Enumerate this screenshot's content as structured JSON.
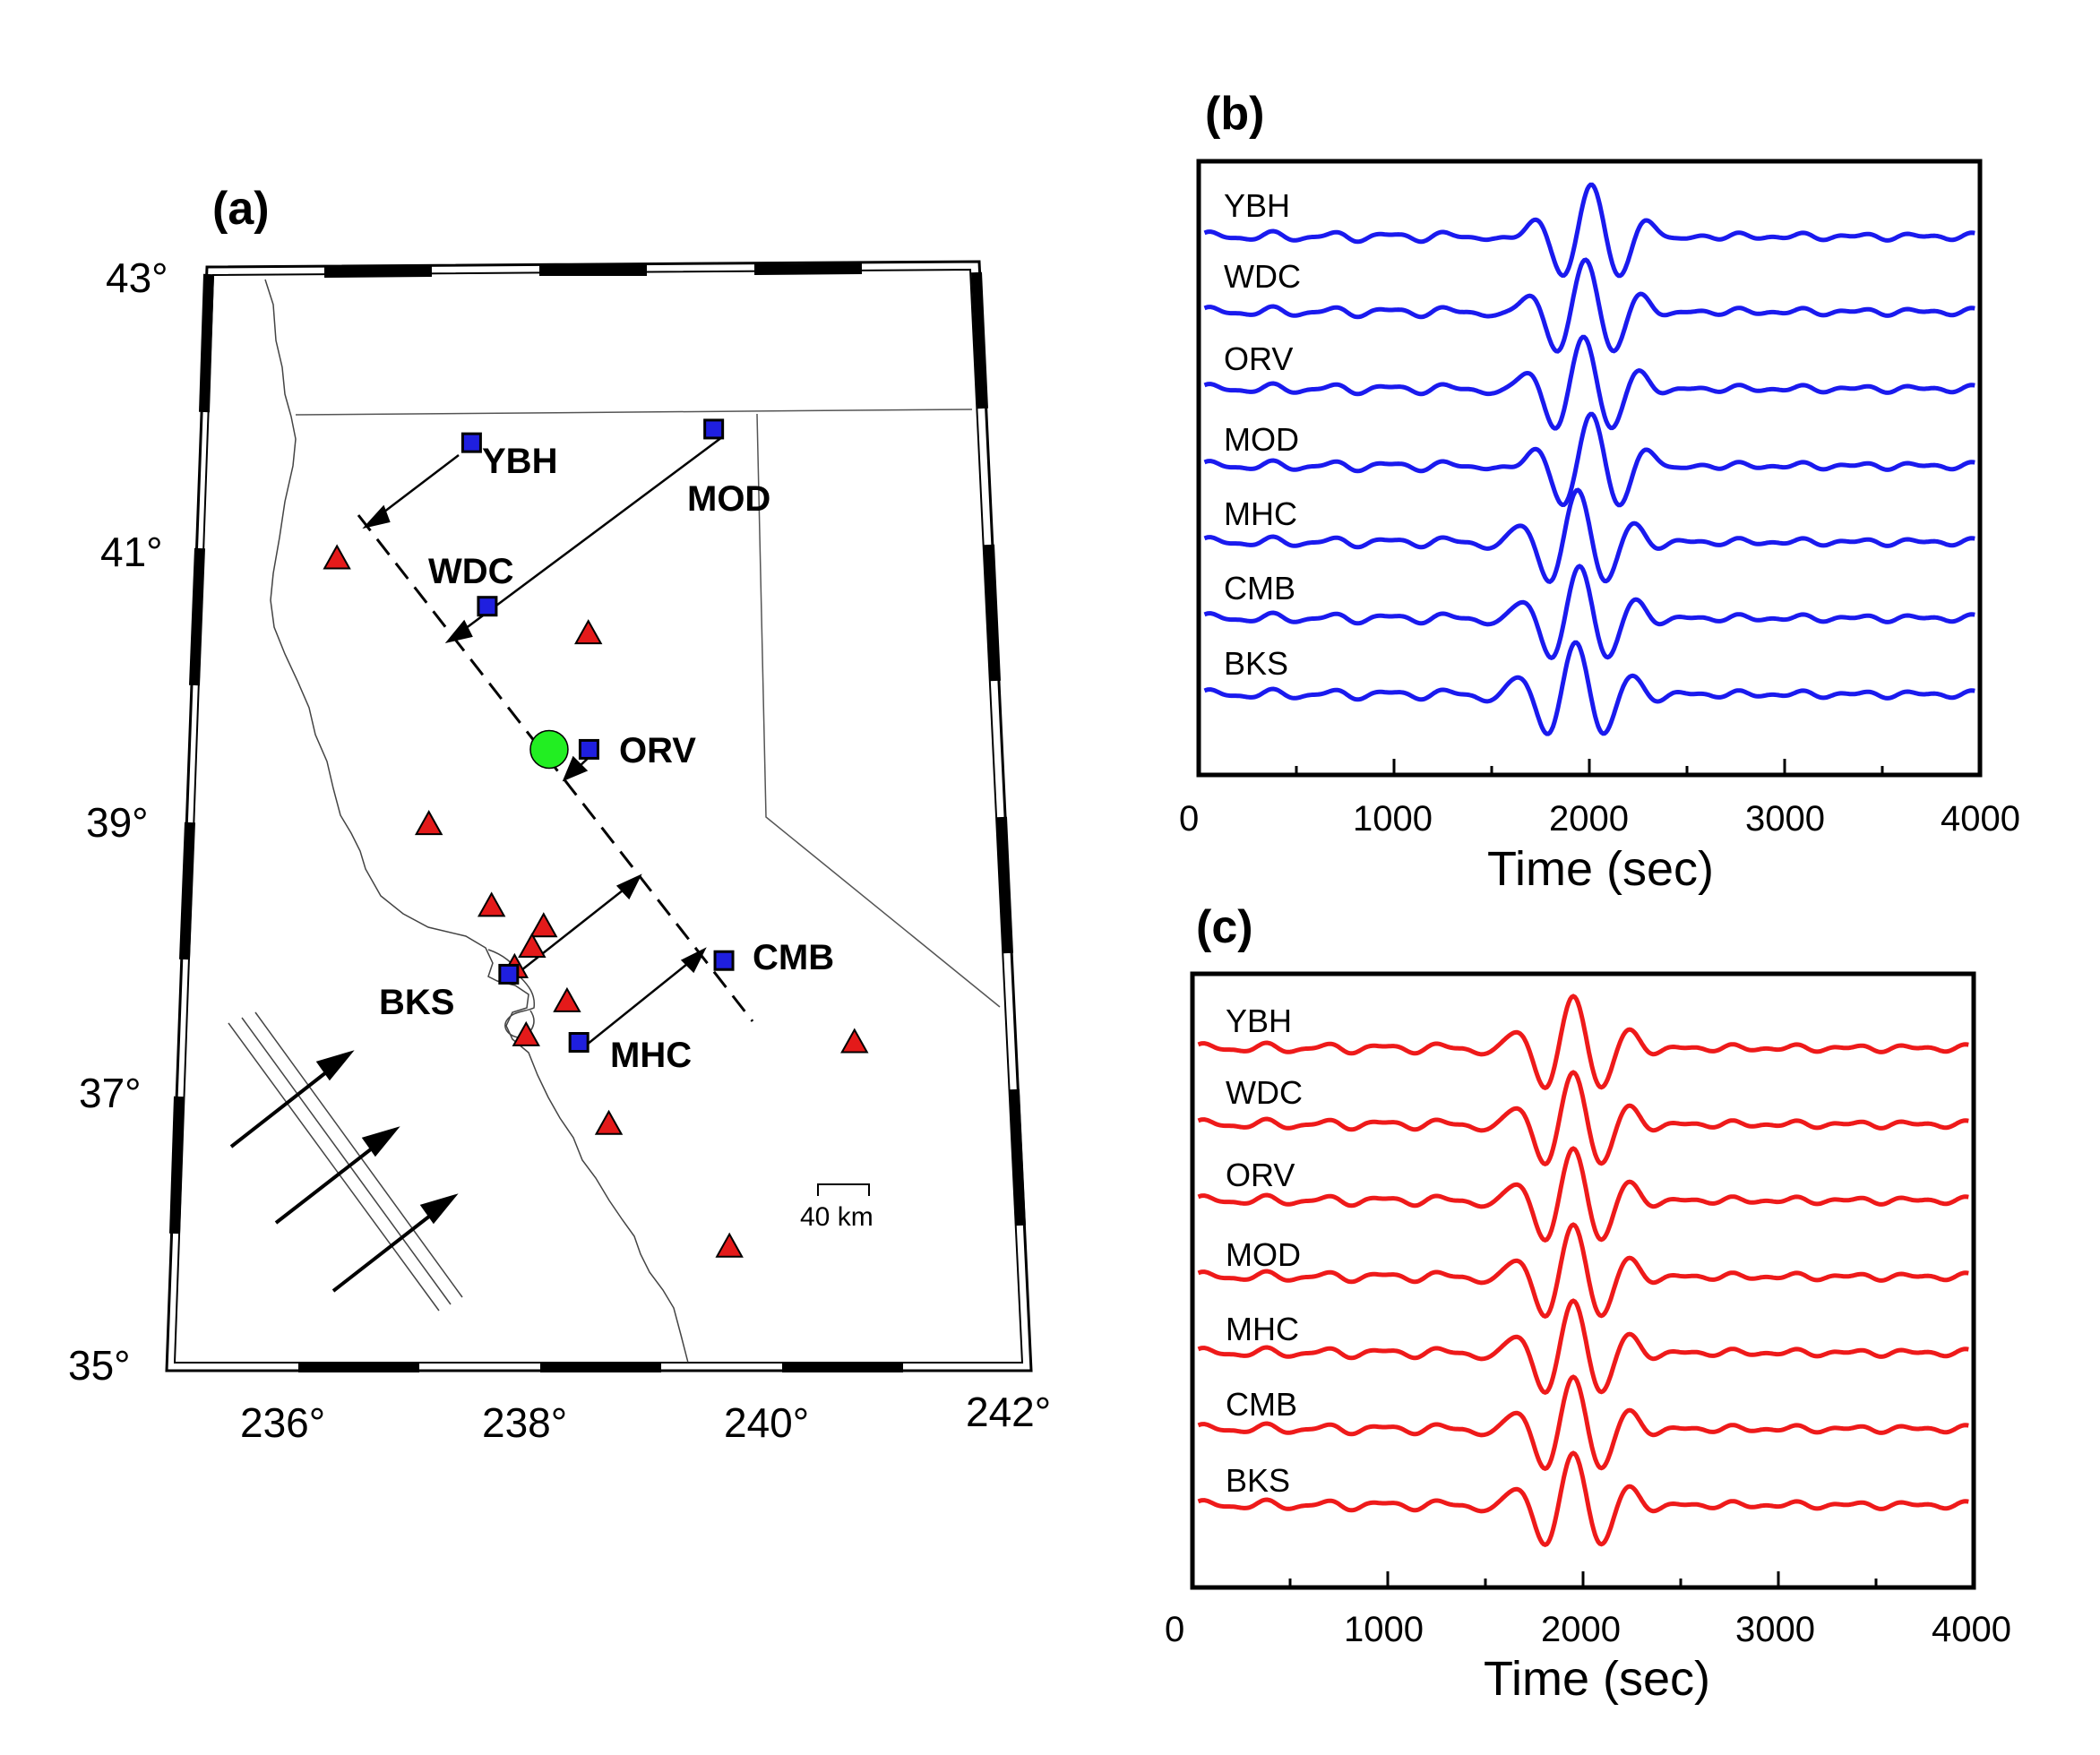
{
  "panel_labels": {
    "a": "(a)",
    "b": "(b)",
    "c": "(c)"
  },
  "map": {
    "lat_ticks": [
      "35°",
      "37°",
      "39°",
      "41°",
      "43°"
    ],
    "lon_ticks": [
      "236°",
      "238°",
      "240°",
      "242°"
    ],
    "stations": [
      {
        "code": "YBH",
        "lon": 237.4,
        "lat": 41.75
      },
      {
        "code": "MOD",
        "lon": 239.6,
        "lat": 41.85
      },
      {
        "code": "WDC",
        "lon": 237.55,
        "lat": 40.55
      },
      {
        "code": "ORV",
        "lon": 238.45,
        "lat": 39.5
      },
      {
        "code": "CMB",
        "lon": 239.6,
        "lat": 37.95
      },
      {
        "code": "BKS",
        "lon": 237.75,
        "lat": 37.85
      },
      {
        "code": "MHC",
        "lon": 238.35,
        "lat": 37.35
      }
    ],
    "event": {
      "lon": 238.1,
      "lat": 39.5
    },
    "volcanoes": [
      {
        "lon": 236.2,
        "lat": 40.9
      },
      {
        "lon": 238.45,
        "lat": 40.35
      },
      {
        "lon": 237.05,
        "lat": 38.95
      },
      {
        "lon": 237.6,
        "lat": 38.35
      },
      {
        "lon": 238.05,
        "lat": 38.2
      },
      {
        "lon": 237.95,
        "lat": 38.05
      },
      {
        "lon": 237.8,
        "lat": 37.9
      },
      {
        "lon": 238.25,
        "lat": 37.65
      },
      {
        "lon": 237.9,
        "lat": 37.4
      },
      {
        "lon": 238.6,
        "lat": 36.75
      },
      {
        "lon": 239.6,
        "lat": 35.85
      },
      {
        "lon": 240.7,
        "lat": 37.35
      }
    ],
    "scale_bar_label": "40 km",
    "colors": {
      "station": "#1f1fdf",
      "event": "#22ee22",
      "volcano": "#e41a1a"
    }
  },
  "panel_b": {
    "xlim": [
      0,
      4000
    ],
    "x_ticks": [
      "0",
      "1000",
      "2000",
      "3000",
      "4000"
    ],
    "xlabel": "Time (sec)",
    "trace_labels": [
      "YBH",
      "WDC",
      "ORV",
      "MOD",
      "MHC",
      "CMB",
      "BKS"
    ],
    "color": "#1a1aee"
  },
  "panel_c": {
    "xlim": [
      0,
      4000
    ],
    "x_ticks": [
      "0",
      "1000",
      "2000",
      "3000",
      "4000"
    ],
    "xlabel": "Time (sec)",
    "trace_labels": [
      "YBH",
      "WDC",
      "ORV",
      "MOD",
      "MHC",
      "CMB",
      "BKS"
    ],
    "color": "#ee1a1a"
  }
}
